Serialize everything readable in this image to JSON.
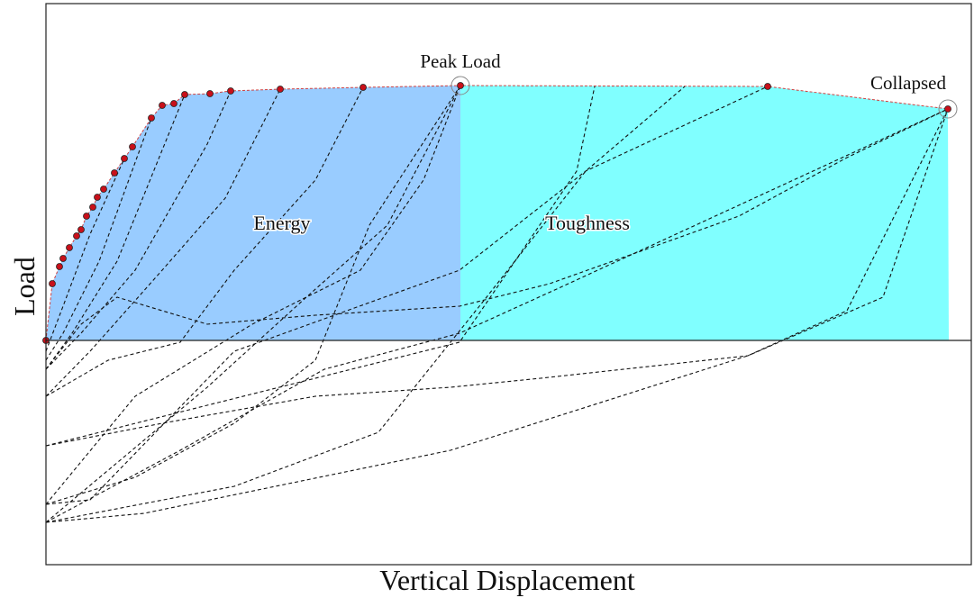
{
  "axes": {
    "x_label": "Vertical Displacement",
    "y_label": "Load"
  },
  "annotations": {
    "peak": "Peak Load",
    "collapse": "Collapsed",
    "left_area": "Energy",
    "right_area": "Toughness"
  }
}
